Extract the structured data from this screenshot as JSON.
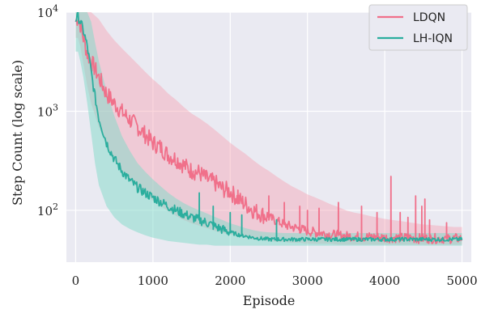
{
  "chart_data": {
    "type": "line",
    "title": "",
    "xlabel": "Episode",
    "ylabel": "Step Count (log scale)",
    "xlim": [
      -120,
      5120
    ],
    "ylim": [
      30,
      10000
    ],
    "yscale": "log",
    "grid": true,
    "legend_position": "top-right",
    "x_ticks": [
      0,
      1000,
      2000,
      3000,
      4000,
      5000
    ],
    "x_tick_labels": [
      "0",
      "1000",
      "2000",
      "3000",
      "4000",
      "5000"
    ],
    "y_ticks": [
      {
        "value": 100,
        "base": "10",
        "exp": "2"
      },
      {
        "value": 1000,
        "base": "10",
        "exp": "3"
      },
      {
        "value": 10000,
        "base": "10",
        "exp": "4"
      }
    ],
    "series": [
      {
        "name": "LDQN",
        "color": "#F0708A",
        "band_color": "#F7A3B4",
        "x": [
          0,
          30,
          60,
          100,
          150,
          200,
          300,
          400,
          500,
          600,
          700,
          800,
          900,
          1000,
          1100,
          1200,
          1300,
          1400,
          1500,
          1600,
          1700,
          1800,
          1900,
          2000,
          2100,
          2200,
          2300,
          2400,
          2500,
          2600,
          2700,
          2800,
          2900,
          3000,
          3100,
          3200,
          3300,
          3400,
          3500,
          3600,
          3700,
          3800,
          3900,
          4000,
          4100,
          4200,
          4300,
          4400,
          4500,
          4600,
          4700,
          4800,
          4900,
          5000
        ],
        "y": [
          8000,
          9000,
          7500,
          5500,
          3800,
          3200,
          2200,
          1500,
          1200,
          980,
          820,
          700,
          580,
          480,
          430,
          360,
          330,
          285,
          250,
          240,
          205,
          190,
          165,
          155,
          130,
          115,
          100,
          92,
          85,
          78,
          72,
          68,
          65,
          62,
          60,
          59,
          57,
          56,
          55,
          55,
          54,
          54,
          54,
          53,
          53,
          53,
          53,
          52,
          52,
          52,
          52,
          52,
          52,
          52
        ],
        "band_upper": [
          11000,
          11000,
          11000,
          11000,
          11000,
          10000,
          8500,
          6500,
          5200,
          4300,
          3600,
          3000,
          2500,
          2100,
          1800,
          1500,
          1300,
          1100,
          950,
          850,
          750,
          650,
          560,
          480,
          420,
          370,
          320,
          280,
          250,
          220,
          195,
          175,
          160,
          145,
          135,
          125,
          115,
          108,
          100,
          95,
          92,
          88,
          85,
          82,
          80,
          78,
          76,
          74,
          72,
          71,
          70,
          69,
          68,
          68
        ],
        "band_lower": [
          5500,
          5500,
          4500,
          3000,
          1800,
          1200,
          700,
          450,
          320,
          250,
          200,
          170,
          145,
          125,
          110,
          98,
          88,
          80,
          74,
          70,
          66,
          62,
          59,
          57,
          55,
          53,
          51,
          50,
          49,
          48,
          48,
          47,
          47,
          46,
          46,
          46,
          46,
          45,
          45,
          45,
          45,
          45,
          45,
          45,
          45,
          45,
          45,
          45,
          45,
          45,
          45,
          45,
          45,
          45
        ],
        "spikes": [
          [
            1520,
            230
          ],
          [
            1680,
            250
          ],
          [
            1800,
            200
          ],
          [
            2100,
            160
          ],
          [
            2500,
            140
          ],
          [
            2700,
            120
          ],
          [
            2900,
            110
          ],
          [
            3000,
            100
          ],
          [
            3150,
            105
          ],
          [
            3400,
            120
          ],
          [
            3700,
            110
          ],
          [
            3900,
            95
          ],
          [
            4080,
            220
          ],
          [
            4200,
            95
          ],
          [
            4300,
            85
          ],
          [
            4400,
            140
          ],
          [
            4480,
            110
          ],
          [
            4520,
            130
          ],
          [
            4580,
            80
          ],
          [
            4800,
            75
          ]
        ]
      },
      {
        "name": "LH-IQN",
        "color": "#2BAE9E",
        "band_color": "#7FD9C8",
        "x": [
          0,
          30,
          60,
          100,
          150,
          200,
          250,
          300,
          400,
          500,
          600,
          700,
          800,
          900,
          1000,
          1100,
          1200,
          1300,
          1400,
          1500,
          1600,
          1700,
          1800,
          1900,
          2000,
          2100,
          2200,
          2300,
          2400,
          2500,
          2700,
          3000,
          3500,
          4000,
          4500,
          5000
        ],
        "y": [
          8500,
          9000,
          8000,
          6500,
          4500,
          2500,
          1400,
          850,
          480,
          330,
          250,
          200,
          170,
          150,
          135,
          122,
          110,
          100,
          92,
          85,
          80,
          75,
          69,
          64,
          60,
          57,
          55,
          53,
          52,
          51,
          51,
          51,
          51,
          51,
          51,
          51
        ],
        "band_upper": [
          11000,
          11000,
          11000,
          11000,
          10000,
          8000,
          5000,
          3200,
          1600,
          900,
          560,
          400,
          300,
          245,
          205,
          175,
          150,
          132,
          118,
          108,
          100,
          93,
          86,
          80,
          74,
          70,
          66,
          63,
          61,
          60,
          59,
          59,
          59,
          59,
          59,
          59
        ],
        "band_lower": [
          4000,
          4000,
          3200,
          2200,
          1200,
          600,
          300,
          180,
          110,
          85,
          72,
          65,
          60,
          56,
          53,
          51,
          49,
          48,
          47,
          46,
          45,
          45,
          44,
          44,
          44,
          44,
          44,
          44,
          44,
          44,
          44,
          44,
          44,
          44,
          44,
          44
        ],
        "spikes": [
          [
            1600,
            150
          ],
          [
            1780,
            110
          ],
          [
            2000,
            95
          ],
          [
            2150,
            90
          ],
          [
            2600,
            80
          ]
        ]
      }
    ]
  }
}
